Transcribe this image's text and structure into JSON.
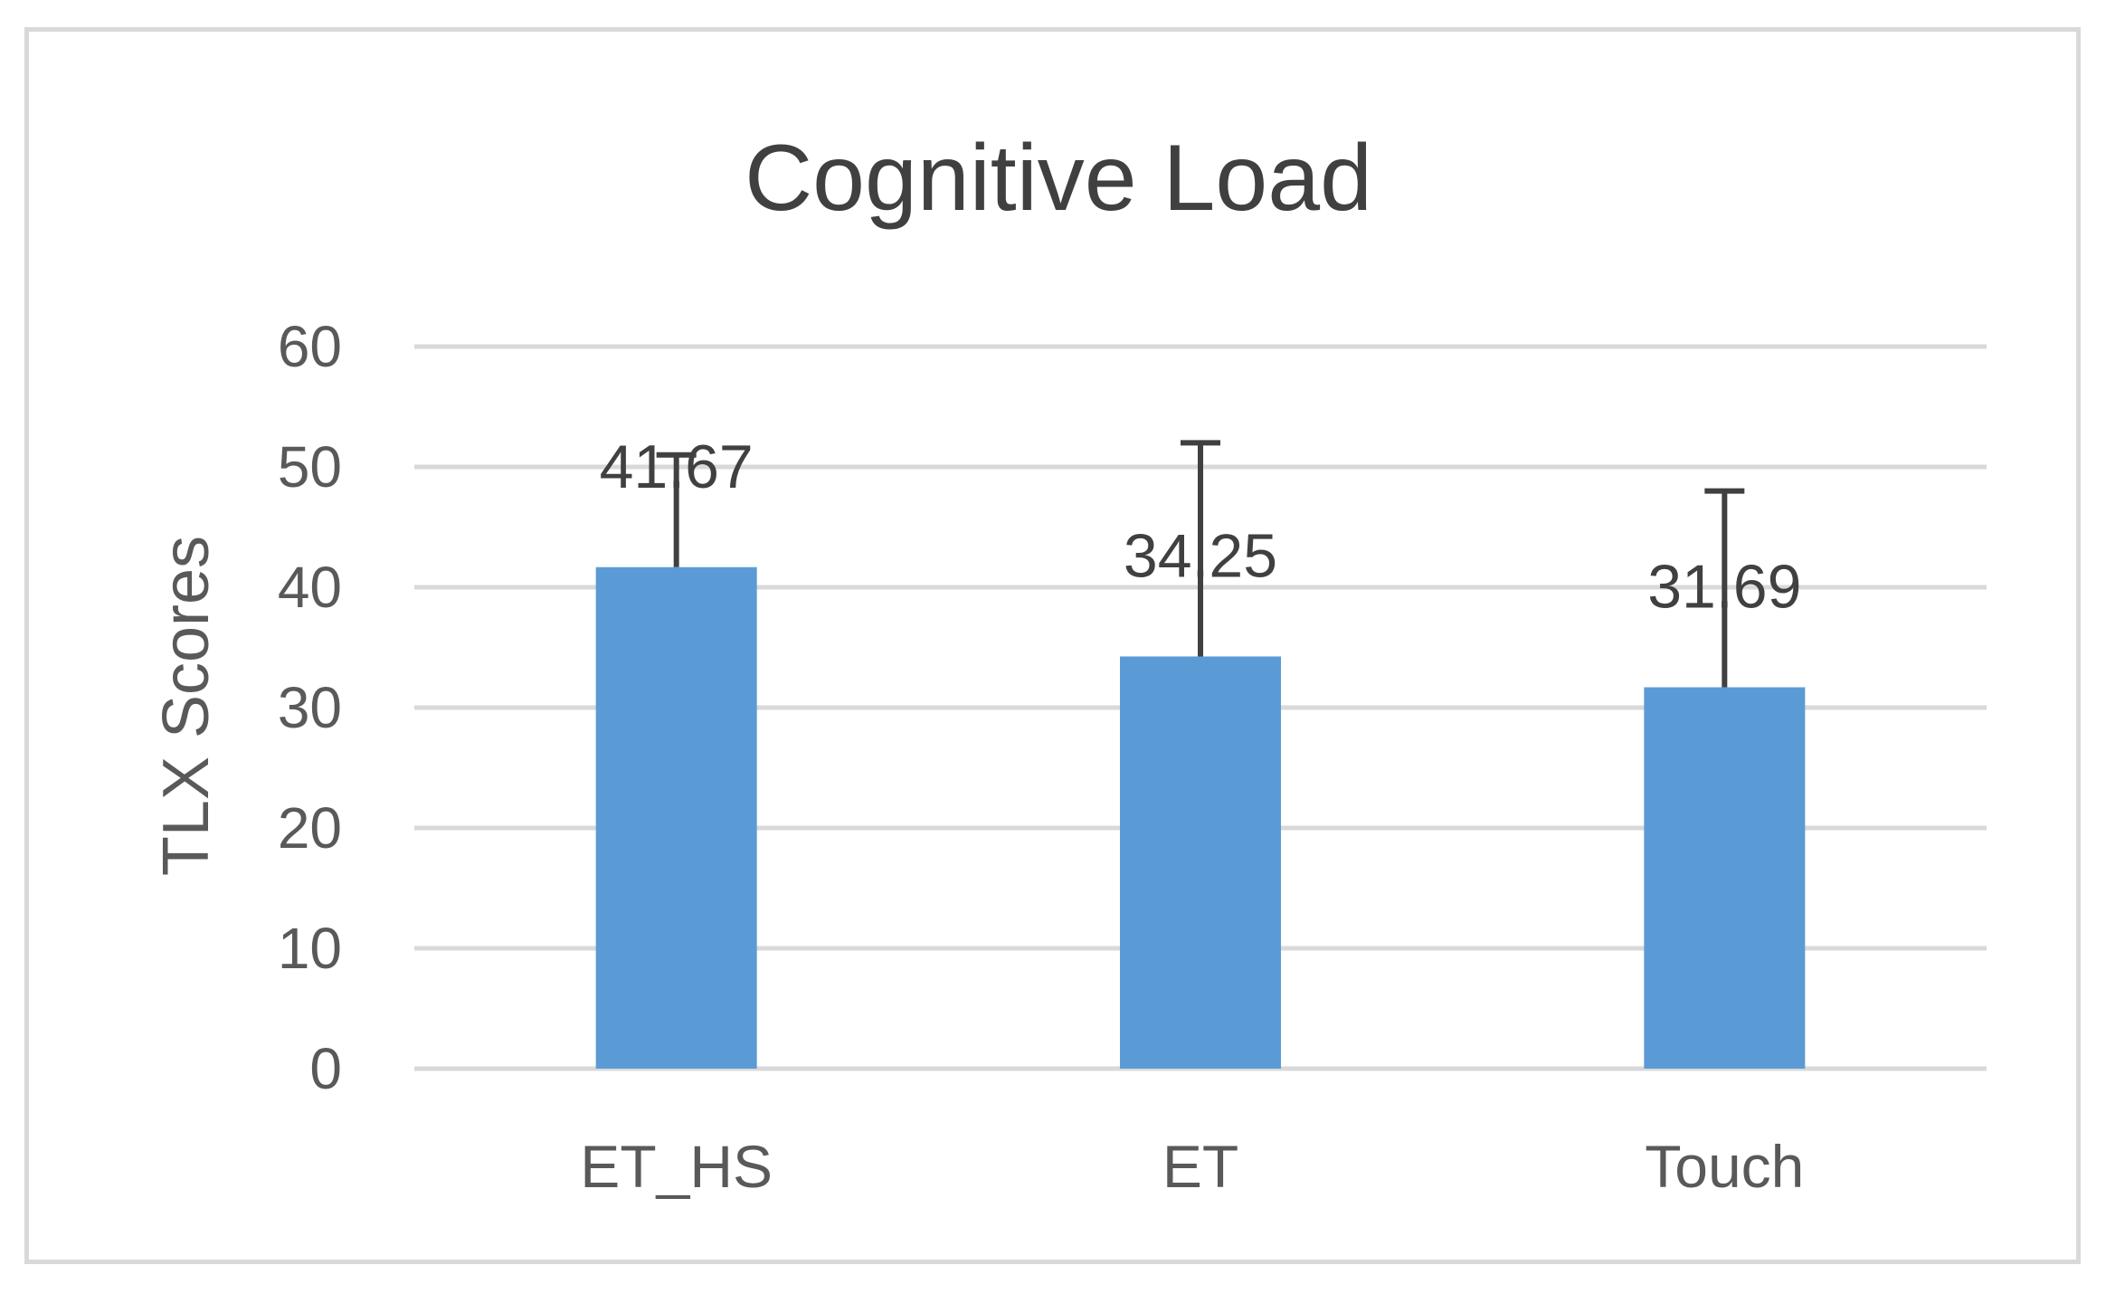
{
  "chart_data": {
    "type": "bar",
    "title": "Cognitive Load",
    "xlabel": "",
    "ylabel": "TLX Scores",
    "categories": [
      "ET_HS",
      "ET",
      "Touch"
    ],
    "values": [
      41.67,
      34.25,
      31.69
    ],
    "data_labels": [
      "41.67",
      "34.25",
      "31.69"
    ],
    "error_upper": [
      51,
      52,
      48
    ],
    "ylim": [
      0,
      60
    ],
    "yticks": [
      0,
      10,
      20,
      30,
      40,
      50,
      60
    ],
    "ytick_labels": [
      "0",
      "10",
      "20",
      "30",
      "40",
      "50",
      "60"
    ],
    "grid": true,
    "legend": "none",
    "bar_color": "#5b9bd5",
    "grid_color": "#d9d9d9",
    "error_bar_color": "#404040"
  }
}
